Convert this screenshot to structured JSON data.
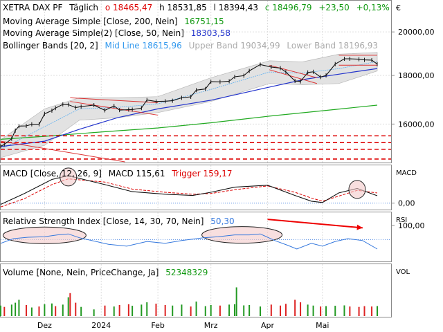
{
  "chart_data": [
    {
      "type": "line",
      "panel": "price",
      "instrument": "XETRA DAX PF",
      "interval": "Täglich",
      "ohlc": {
        "open_label": "o 18465,47",
        "high_label": "h 18531,85",
        "low_label": "l 18394,43",
        "close_label": "c 18496,79",
        "change_label": "+23,50",
        "change_pct_label": "+0,13%"
      },
      "currency_label": "€",
      "y_scale": "log",
      "ylim": [
        14600,
        21500
      ],
      "yticks": [
        16000,
        18000,
        20000
      ],
      "ytick_labels": [
        "16000,00",
        "18000,00",
        "20000,00"
      ],
      "x_range": [
        "2023-11-07",
        "2024-05-31"
      ],
      "xtick_labels": [
        "Dez",
        "2024",
        "Feb",
        "Mrz",
        "Apr",
        "Mai"
      ],
      "xticks": [
        "2023-12-01",
        "2024-01-01",
        "2024-02-01",
        "2024-03-01",
        "2024-04-01",
        "2024-05-01"
      ],
      "indicators": [
        {
          "name": "Moving Average Simple [Close, 200, Nein]",
          "value_label": "16751,15",
          "color": "#22aa22"
        },
        {
          "name": "Moving Average Simple(2) [Close, 50, Nein]",
          "value_label": "18303,58",
          "color": "#2233cc"
        },
        {
          "name": "Bollinger Bands [20, 2]",
          "mid_label": "Mid Line 18615,96",
          "upper_label": "Upper Band 19034,99",
          "lower_label": "Lower Band 18196,93",
          "color": "#3399ee"
        }
      ],
      "close_series": [
        [
          "2023-11-07",
          15160
        ],
        [
          "2023-11-09",
          15230
        ],
        [
          "2023-11-13",
          15440
        ],
        [
          "2023-11-15",
          15750
        ],
        [
          "2023-11-17",
          15920
        ],
        [
          "2023-11-21",
          15930
        ],
        [
          "2023-11-24",
          15990
        ],
        [
          "2023-11-28",
          15990
        ],
        [
          "2023-12-01",
          16400
        ],
        [
          "2023-12-05",
          16530
        ],
        [
          "2023-12-07",
          16630
        ],
        [
          "2023-12-11",
          16780
        ],
        [
          "2023-12-14",
          16770
        ],
        [
          "2023-12-18",
          16650
        ],
        [
          "2023-12-21",
          16690
        ],
        [
          "2023-12-28",
          16750
        ],
        [
          "2024-01-03",
          16540
        ],
        [
          "2024-01-08",
          16720
        ],
        [
          "2024-01-11",
          16550
        ],
        [
          "2024-01-16",
          16570
        ],
        [
          "2024-01-18",
          16570
        ],
        [
          "2024-01-23",
          16630
        ],
        [
          "2024-01-26",
          16960
        ],
        [
          "2024-01-31",
          16900
        ],
        [
          "2024-02-05",
          16910
        ],
        [
          "2024-02-09",
          16930
        ],
        [
          "2024-02-14",
          17050
        ],
        [
          "2024-02-19",
          17090
        ],
        [
          "2024-02-22",
          17370
        ],
        [
          "2024-02-27",
          17420
        ],
        [
          "2024-03-01",
          17730
        ],
        [
          "2024-03-06",
          17720
        ],
        [
          "2024-03-11",
          17750
        ],
        [
          "2024-03-14",
          17940
        ],
        [
          "2024-03-19",
          17990
        ],
        [
          "2024-03-22",
          18200
        ],
        [
          "2024-03-28",
          18480
        ],
        [
          "2024-04-03",
          18370
        ],
        [
          "2024-04-08",
          18320
        ],
        [
          "2024-04-11",
          18150
        ],
        [
          "2024-04-16",
          17760
        ],
        [
          "2024-04-19",
          17740
        ],
        [
          "2024-04-23",
          18130
        ],
        [
          "2024-04-26",
          18160
        ],
        [
          "2024-04-30",
          17930
        ],
        [
          "2024-05-03",
          18000
        ],
        [
          "2024-05-08",
          18500
        ],
        [
          "2024-05-13",
          18740
        ],
        [
          "2024-05-16",
          18740
        ],
        [
          "2024-05-21",
          18720
        ],
        [
          "2024-05-24",
          18690
        ],
        [
          "2024-05-28",
          18680
        ],
        [
          "2024-05-31",
          18500
        ]
      ],
      "sma200_series": [
        [
          "2023-11-07",
          15420
        ],
        [
          "2023-12-01",
          15530
        ],
        [
          "2024-01-02",
          15700
        ],
        [
          "2024-02-01",
          15850
        ],
        [
          "2024-03-01",
          16050
        ],
        [
          "2024-04-02",
          16310
        ],
        [
          "2024-05-02",
          16530
        ],
        [
          "2024-05-31",
          16751
        ]
      ],
      "sma50_series": [
        [
          "2023-11-07",
          15150
        ],
        [
          "2023-12-01",
          15350
        ],
        [
          "2023-12-20",
          15800
        ],
        [
          "2024-01-10",
          16250
        ],
        [
          "2024-02-01",
          16600
        ],
        [
          "2024-03-01",
          16950
        ],
        [
          "2024-04-02",
          17500
        ],
        [
          "2024-04-22",
          17840
        ],
        [
          "2024-05-14",
          18100
        ],
        [
          "2024-05-31",
          18304
        ]
      ],
      "bb_mid_series": [
        [
          "2023-11-07",
          15050
        ],
        [
          "2023-12-01",
          15900
        ],
        [
          "2023-12-20",
          16600
        ],
        [
          "2024-01-10",
          16660
        ],
        [
          "2024-02-01",
          16800
        ],
        [
          "2024-03-01",
          17400
        ],
        [
          "2024-04-02",
          18150
        ],
        [
          "2024-04-20",
          18100
        ],
        [
          "2024-05-10",
          18300
        ],
        [
          "2024-05-31",
          18616
        ]
      ],
      "bb_upper_series": [
        [
          "2023-11-07",
          15400
        ],
        [
          "2023-12-01",
          16600
        ],
        [
          "2023-12-20",
          17050
        ],
        [
          "2024-01-10",
          17050
        ],
        [
          "2024-02-01",
          17100
        ],
        [
          "2024-03-01",
          17900
        ],
        [
          "2024-04-02",
          18650
        ],
        [
          "2024-04-20",
          18600
        ],
        [
          "2024-05-10",
          18950
        ],
        [
          "2024-05-31",
          19035
        ]
      ],
      "bb_lower_series": [
        [
          "2023-11-07",
          14750
        ],
        [
          "2023-12-01",
          15200
        ],
        [
          "2023-12-20",
          16150
        ],
        [
          "2024-01-10",
          16250
        ],
        [
          "2024-02-01",
          16450
        ],
        [
          "2024-03-01",
          16900
        ],
        [
          "2024-04-02",
          17650
        ],
        [
          "2024-04-20",
          17600
        ],
        [
          "2024-05-10",
          17650
        ],
        [
          "2024-05-31",
          18197
        ]
      ],
      "support_levels": [
        14700,
        15050,
        15300,
        15550
      ],
      "support_color": "#dd0000",
      "trend_lines": [
        {
          "from": [
            "2023-12-15",
            17050
          ],
          "to": [
            "2024-02-01",
            16850
          ],
          "color": "#dd3333"
        },
        {
          "from": [
            "2023-12-15",
            16900
          ],
          "to": [
            "2024-02-01",
            16350
          ],
          "color": "#dd3333"
        },
        {
          "from": [
            "2024-04-02",
            18450
          ],
          "to": [
            "2024-04-28",
            17900
          ],
          "color": "#dd3333"
        },
        {
          "from": [
            "2024-04-02",
            18250
          ],
          "to": [
            "2024-04-28",
            17650
          ],
          "color": "#dd3333"
        },
        {
          "from": [
            "2024-05-10",
            18900
          ],
          "to": [
            "2024-05-31",
            18900
          ],
          "color": "#dd3333"
        },
        {
          "from": [
            "2024-05-10",
            18450
          ],
          "to": [
            "2024-05-31",
            18450
          ],
          "color": "#dd3333"
        },
        {
          "from": [
            "2023-11-07",
            15350
          ],
          "to": [
            "2024-01-14",
            14600
          ],
          "color": "#dd3333"
        }
      ]
    },
    {
      "type": "line",
      "panel": "macd",
      "name": "MACD [Close, 12, 26, 9]",
      "macd_label": "MACD 115,61",
      "trigger_label": "Trigger 159,17",
      "axis_label": "MACD",
      "ylim": [
        -90,
        560
      ],
      "yticks": [
        0
      ],
      "ytick_labels": [
        "0,00"
      ],
      "macd_series": [
        [
          "2023-11-07",
          -20
        ],
        [
          "2023-11-20",
          150
        ],
        [
          "2023-12-05",
          370
        ],
        [
          "2023-12-14",
          430
        ],
        [
          "2024-01-03",
          290
        ],
        [
          "2024-01-18",
          180
        ],
        [
          "2024-02-05",
          140
        ],
        [
          "2024-02-20",
          120
        ],
        [
          "2024-03-01",
          170
        ],
        [
          "2024-03-14",
          250
        ],
        [
          "2024-04-01",
          280
        ],
        [
          "2024-04-16",
          120
        ],
        [
          "2024-04-25",
          30
        ],
        [
          "2024-05-01",
          10
        ],
        [
          "2024-05-10",
          160
        ],
        [
          "2024-05-20",
          230
        ],
        [
          "2024-05-31",
          116
        ]
      ],
      "trigger_series": [
        [
          "2023-11-07",
          -60
        ],
        [
          "2023-11-20",
          70
        ],
        [
          "2023-12-05",
          290
        ],
        [
          "2023-12-14",
          380
        ],
        [
          "2024-01-03",
          330
        ],
        [
          "2024-01-18",
          220
        ],
        [
          "2024-02-05",
          170
        ],
        [
          "2024-02-20",
          140
        ],
        [
          "2024-03-01",
          150
        ],
        [
          "2024-03-14",
          210
        ],
        [
          "2024-04-01",
          270
        ],
        [
          "2024-04-16",
          170
        ],
        [
          "2024-04-25",
          80
        ],
        [
          "2024-05-01",
          30
        ],
        [
          "2024-05-10",
          110
        ],
        [
          "2024-05-20",
          200
        ],
        [
          "2024-05-31",
          159
        ]
      ],
      "macd_color": "#111111",
      "trigger_color": "#dd0000",
      "zero_color": "#3377dd"
    },
    {
      "type": "line",
      "panel": "rsi",
      "name": "Relative Strength Index [Close, 14, 30, 70, Nein]",
      "value_label": "50,30",
      "axis_label": "RSI",
      "ylim": [
        25,
        125
      ],
      "yticks": [
        100
      ],
      "ytick_labels": [
        "100,00"
      ],
      "reference_level": 70,
      "rsi_series": [
        [
          "2023-11-07",
          62
        ],
        [
          "2023-11-14",
          72
        ],
        [
          "2023-11-22",
          75
        ],
        [
          "2023-12-01",
          76
        ],
        [
          "2023-12-08",
          80
        ],
        [
          "2023-12-14",
          82
        ],
        [
          "2023-12-20",
          74
        ],
        [
          "2024-01-05",
          60
        ],
        [
          "2024-01-15",
          56
        ],
        [
          "2024-01-26",
          66
        ],
        [
          "2024-02-05",
          62
        ],
        [
          "2024-02-14",
          68
        ],
        [
          "2024-02-26",
          74
        ],
        [
          "2024-03-05",
          76
        ],
        [
          "2024-03-14",
          80
        ],
        [
          "2024-03-22",
          80
        ],
        [
          "2024-03-28",
          82
        ],
        [
          "2024-04-05",
          68
        ],
        [
          "2024-04-12",
          58
        ],
        [
          "2024-04-17",
          50
        ],
        [
          "2024-04-25",
          62
        ],
        [
          "2024-05-01",
          56
        ],
        [
          "2024-05-08",
          66
        ],
        [
          "2024-05-15",
          72
        ],
        [
          "2024-05-23",
          68
        ],
        [
          "2024-05-31",
          50
        ]
      ],
      "color": "#3377dd",
      "divergence_arrow": {
        "from": [
          "2024-04-01",
          113
        ],
        "to": [
          "2024-05-23",
          95
        ],
        "color": "#ee0000"
      }
    },
    {
      "type": "bar",
      "panel": "volume",
      "name": "Volume [None, Nein, PriceChange, Ja]",
      "value_label": "52348329",
      "axis_label": "VOL",
      "ylim": [
        0,
        260000000
      ],
      "bar_colors": {
        "up": "#229922",
        "down": "#dd2222"
      },
      "volume_series": [
        [
          "2023-11-07",
          55000000,
          "up"
        ],
        [
          "2023-11-09",
          48000000,
          "down"
        ],
        [
          "2023-11-13",
          60000000,
          "up"
        ],
        [
          "2023-11-15",
          70000000,
          "up"
        ],
        [
          "2023-11-17",
          85000000,
          "up"
        ],
        [
          "2023-11-21",
          58000000,
          "down"
        ],
        [
          "2023-11-24",
          45000000,
          "up"
        ],
        [
          "2023-11-28",
          50000000,
          "down"
        ],
        [
          "2023-12-01",
          62000000,
          "up"
        ],
        [
          "2023-12-05",
          66000000,
          "up"
        ],
        [
          "2023-12-07",
          52000000,
          "down"
        ],
        [
          "2023-12-11",
          60000000,
          "up"
        ],
        [
          "2023-12-14",
          98000000,
          "up"
        ],
        [
          "2023-12-15",
          120000000,
          "down"
        ],
        [
          "2023-12-18",
          70000000,
          "down"
        ],
        [
          "2023-12-21",
          48000000,
          "up"
        ],
        [
          "2023-12-28",
          35000000,
          "up"
        ],
        [
          "2024-01-03",
          55000000,
          "down"
        ],
        [
          "2024-01-08",
          50000000,
          "up"
        ],
        [
          "2024-01-11",
          58000000,
          "down"
        ],
        [
          "2024-01-16",
          62000000,
          "down"
        ],
        [
          "2024-01-18",
          54000000,
          "up"
        ],
        [
          "2024-01-23",
          60000000,
          "up"
        ],
        [
          "2024-01-26",
          72000000,
          "up"
        ],
        [
          "2024-01-31",
          65000000,
          "down"
        ],
        [
          "2024-02-05",
          58000000,
          "down"
        ],
        [
          "2024-02-09",
          55000000,
          "up"
        ],
        [
          "2024-02-14",
          60000000,
          "up"
        ],
        [
          "2024-02-19",
          50000000,
          "down"
        ],
        [
          "2024-02-22",
          76000000,
          "up"
        ],
        [
          "2024-02-27",
          52000000,
          "up"
        ],
        [
          "2024-03-01",
          58000000,
          "up"
        ],
        [
          "2024-03-06",
          55000000,
          "down"
        ],
        [
          "2024-03-11",
          60000000,
          "up"
        ],
        [
          "2024-03-14",
          62000000,
          "up"
        ],
        [
          "2024-03-15",
          150000000,
          "up"
        ],
        [
          "2024-03-19",
          56000000,
          "up"
        ],
        [
          "2024-03-22",
          58000000,
          "up"
        ],
        [
          "2024-03-28",
          50000000,
          "up"
        ],
        [
          "2024-04-03",
          60000000,
          "down"
        ],
        [
          "2024-04-08",
          55000000,
          "down"
        ],
        [
          "2024-04-11",
          64000000,
          "down"
        ],
        [
          "2024-04-16",
          85000000,
          "down"
        ],
        [
          "2024-04-19",
          72000000,
          "down"
        ],
        [
          "2024-04-23",
          60000000,
          "up"
        ],
        [
          "2024-04-26",
          55000000,
          "up"
        ],
        [
          "2024-04-30",
          50000000,
          "down"
        ],
        [
          "2024-05-03",
          52000000,
          "up"
        ],
        [
          "2024-05-08",
          54000000,
          "up"
        ],
        [
          "2024-05-13",
          56000000,
          "up"
        ],
        [
          "2024-05-16",
          50000000,
          "down"
        ],
        [
          "2024-05-21",
          48000000,
          "down"
        ],
        [
          "2024-05-24",
          52000000,
          "down"
        ],
        [
          "2024-05-28",
          50000000,
          "down"
        ],
        [
          "2024-05-31",
          52348329,
          "up"
        ]
      ]
    }
  ]
}
